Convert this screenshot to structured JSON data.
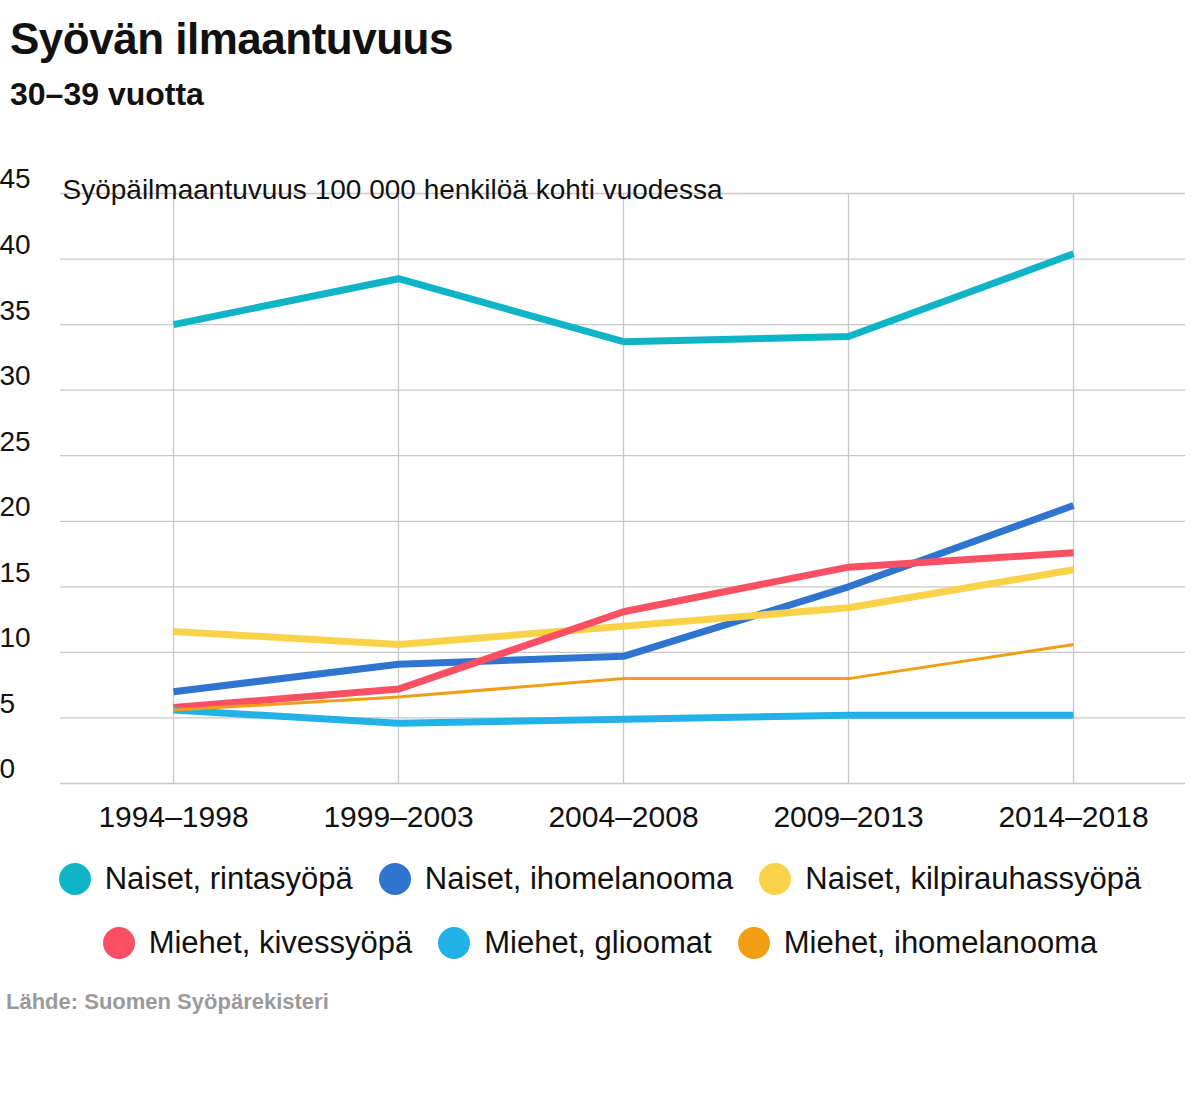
{
  "chart_data": {
    "type": "line",
    "title": "Syövän ilmaantuvuus",
    "subtitle": "30–39 vuotta",
    "y_label": "Syöpäilmaantuvuus 100 000 henkilöä kohti vuodessa",
    "source": "Lähde: Suomen Syöpärekisteri",
    "categories": [
      "1994–1998",
      "1999–2003",
      "2004–2008",
      "2009–2013",
      "2014–2018"
    ],
    "series": [
      {
        "name": "Naiset, rintasyöpä",
        "color": "#0fb5c6",
        "line_style": "solid",
        "values": [
          35.0,
          38.5,
          33.7,
          34.1,
          40.4
        ]
      },
      {
        "name": "Naiset, ihomelanooma",
        "color": "#2f75d0",
        "line_style": "solid",
        "values": [
          7.0,
          9.1,
          9.7,
          15.0,
          21.2
        ]
      },
      {
        "name": "Naiset, kilpirauhassyöpä",
        "color": "#f9d249",
        "line_style": "solid",
        "values": [
          11.6,
          10.6,
          12.0,
          13.4,
          16.3
        ]
      },
      {
        "name": "Miehet, kivessyöpä",
        "color": "#fb4f64",
        "line_style": "solid",
        "values": [
          5.8,
          7.2,
          13.1,
          16.5,
          17.6
        ]
      },
      {
        "name": "Miehet, glioomat",
        "color": "#22b2e8",
        "line_style": "solid",
        "values": [
          5.6,
          4.6,
          4.9,
          5.2,
          5.2
        ]
      },
      {
        "name": "Miehet, ihomelanooma",
        "color": "#f19f12",
        "line_style": "thin",
        "values": [
          5.6,
          6.6,
          8.0,
          8.0,
          10.6
        ]
      }
    ],
    "ylim": [
      0,
      45
    ],
    "yticks": [
      0,
      5,
      10,
      15,
      20,
      25,
      30,
      35,
      40,
      45
    ],
    "grid": true,
    "legend": "bottom"
  }
}
